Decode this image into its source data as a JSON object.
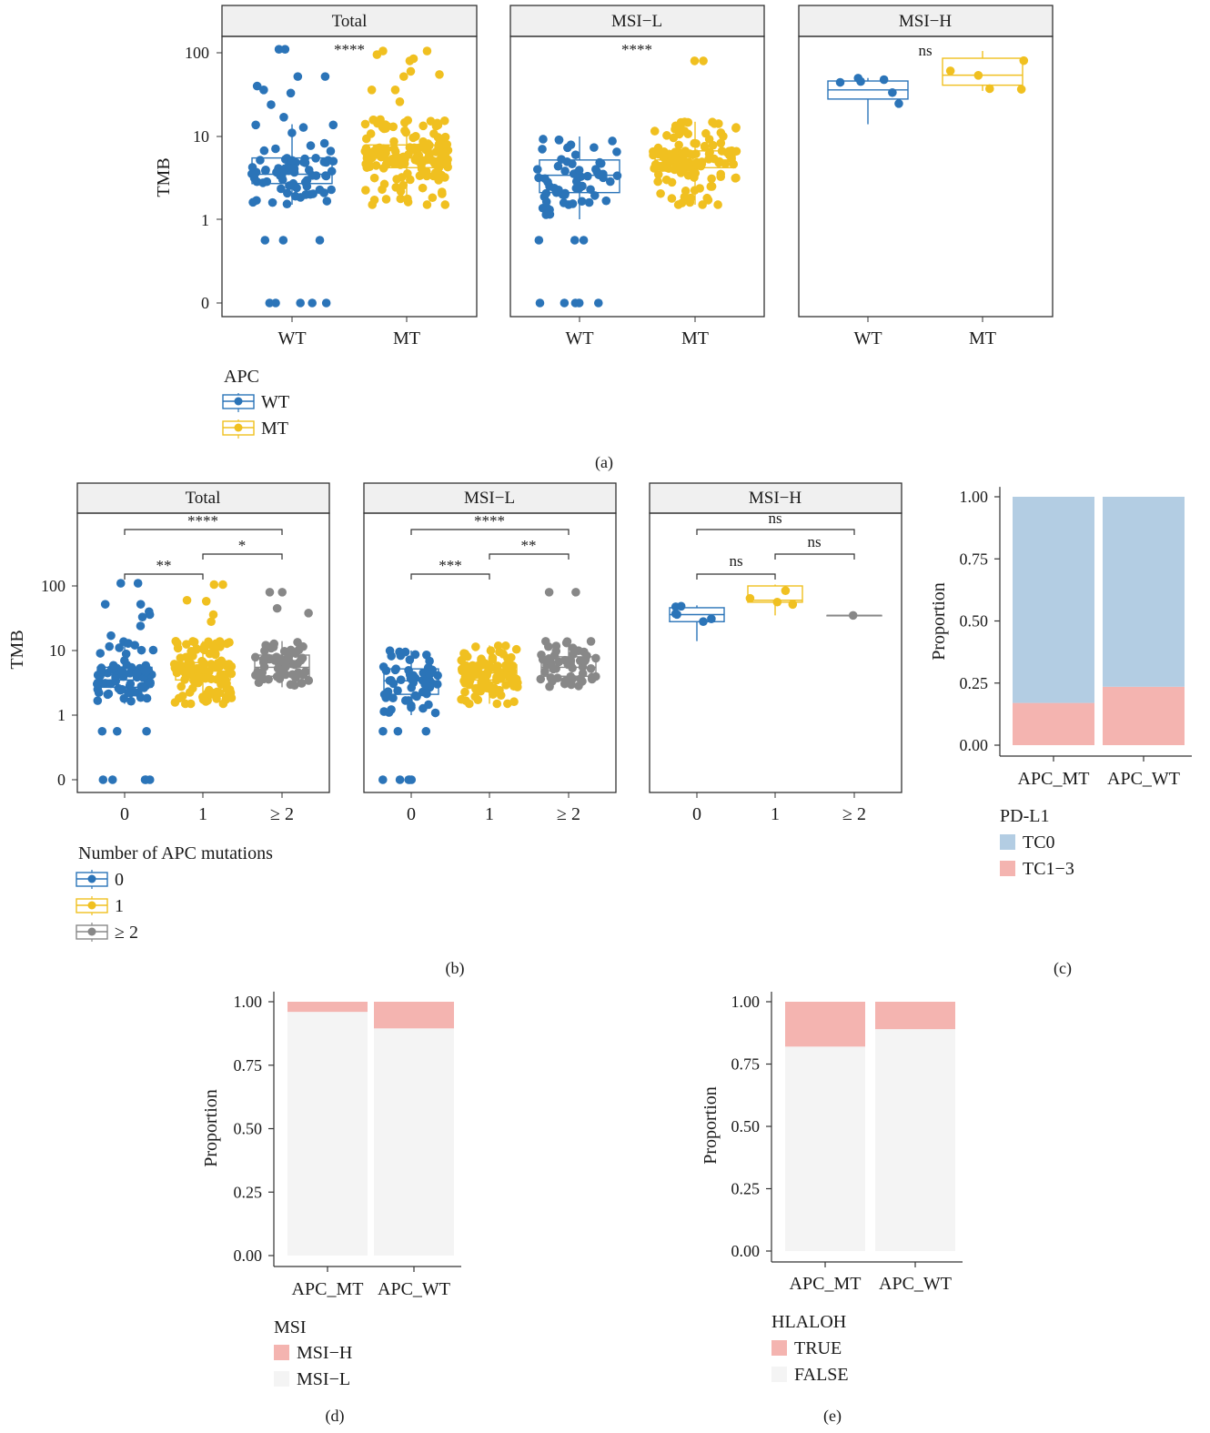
{
  "colors": {
    "blue": "#2b74b8",
    "yellow": "#f0c020",
    "gray": "#888888",
    "pdl1_tc0": "#b3cde3",
    "pink": "#f4b4b0",
    "light": "#f4f4f4",
    "strip_bg": "#f0f0f0"
  },
  "chart_data": [
    {
      "panel": "(a)",
      "type": "scatter",
      "subtype": "boxplot-jitter",
      "ylabel": "TMB",
      "yscale": "log-like",
      "yticks": [
        "0",
        "1",
        "10",
        "100"
      ],
      "facets": [
        "Total",
        "MSI−L",
        "MSI−H"
      ],
      "categories": [
        "WT",
        "MT"
      ],
      "significance": [
        "****",
        "****",
        "ns"
      ],
      "legend": {
        "title": "APC",
        "items": [
          "WT",
          "MT"
        ]
      },
      "series": [
        {
          "name": "WT",
          "boxes": [
            {
              "facet": "Total",
              "q1": 2.7,
              "median": 3.5,
              "q3": 5.5,
              "whisker_low": 1.5,
              "whisker_high": 14
            },
            {
              "facet": "MSI−L",
              "q1": 2.1,
              "median": 3.4,
              "q3": 5.2,
              "whisker_low": 1.0,
              "whisker_high": 10
            },
            {
              "facet": "MSI−H",
              "q1": 28,
              "median": 36,
              "q3": 46,
              "whisker_low": 14,
              "whisker_high": 50
            }
          ]
        },
        {
          "name": "MT",
          "boxes": [
            {
              "facet": "Total",
              "q1": 4.2,
              "median": 5.5,
              "q3": 7.9,
              "whisker_low": 1.5,
              "whisker_high": 16
            },
            {
              "facet": "MSI−L",
              "q1": 4.2,
              "median": 5.2,
              "q3": 6.7,
              "whisker_low": 1.5,
              "whisker_high": 15
            },
            {
              "facet": "MSI−H",
              "q1": 41,
              "median": 54,
              "q3": 86,
              "whisker_low": 35,
              "whisker_high": 105
            }
          ]
        }
      ]
    },
    {
      "panel": "(b)",
      "type": "scatter",
      "subtype": "boxplot-jitter",
      "ylabel": "TMB",
      "yscale": "log-like",
      "yticks": [
        "0",
        "1",
        "10",
        "100"
      ],
      "facets": [
        "Total",
        "MSI−L",
        "MSI−H"
      ],
      "categories": [
        "0",
        "1",
        "≥ 2"
      ],
      "comparisons": [
        {
          "facet": "Total",
          "pairs": [
            [
              "0",
              "1",
              "**"
            ],
            [
              "1",
              "≥ 2",
              "*"
            ],
            [
              "0",
              "≥ 2",
              "****"
            ]
          ]
        },
        {
          "facet": "MSI−L",
          "pairs": [
            [
              "0",
              "1",
              "***"
            ],
            [
              "1",
              "≥ 2",
              "**"
            ],
            [
              "0",
              "≥ 2",
              "****"
            ]
          ]
        },
        {
          "facet": "MSI−H",
          "pairs": [
            [
              "0",
              "1",
              "ns"
            ],
            [
              "1",
              "≥ 2",
              "ns"
            ],
            [
              "0",
              "≥ 2",
              "ns"
            ]
          ]
        }
      ],
      "legend": {
        "title": "Number of APC mutations",
        "items": [
          "0",
          "1",
          "≥ 2"
        ]
      },
      "series": [
        {
          "name": "0",
          "boxes": [
            {
              "facet": "Total",
              "q1": 2.7,
              "median": 3.5,
              "q3": 5.5,
              "whisker_low": 1.5,
              "whisker_high": 14
            },
            {
              "facet": "MSI−L",
              "q1": 2.1,
              "median": 3.4,
              "q3": 5.2,
              "whisker_low": 1.0,
              "whisker_high": 10
            },
            {
              "facet": "MSI−H",
              "q1": 28,
              "median": 36,
              "q3": 46,
              "whisker_low": 14,
              "whisker_high": 50
            }
          ]
        },
        {
          "name": "1",
          "boxes": [
            {
              "facet": "Total",
              "q1": 3.5,
              "median": 4.8,
              "q3": 6.5,
              "whisker_low": 1.5,
              "whisker_high": 14
            },
            {
              "facet": "MSI−L",
              "q1": 3.5,
              "median": 4.5,
              "q3": 6.0,
              "whisker_low": 1.5,
              "whisker_high": 12
            },
            {
              "facet": "MSI−H",
              "q1": 56,
              "median": 60,
              "q3": 100,
              "whisker_low": 35,
              "whisker_high": 105
            }
          ]
        },
        {
          "name": "≥ 2",
          "boxes": [
            {
              "facet": "Total",
              "q1": 4.0,
              "median": 5.5,
              "q3": 8.5,
              "whisker_low": 2.7,
              "whisker_high": 14
            },
            {
              "facet": "MSI−L",
              "q1": 4.0,
              "median": 5.5,
              "q3": 8.0,
              "whisker_low": 2.7,
              "whisker_high": 14
            },
            {
              "facet": "MSI−H",
              "q1": 35,
              "median": 35,
              "q3": 35,
              "whisker_low": 35,
              "whisker_high": 35
            }
          ]
        }
      ]
    },
    {
      "panel": "(c)",
      "type": "bar",
      "stacked": true,
      "categories": [
        "APC_MT",
        "APC_WT"
      ],
      "ylabel": "Proportion",
      "ylim": [
        0,
        1
      ],
      "yticks": [
        "0.00",
        "0.25",
        "0.50",
        "0.75",
        "1.00"
      ],
      "legend": {
        "title": "PD-L1",
        "items": [
          "TC0",
          "TC1−3"
        ]
      },
      "series": [
        {
          "name": "TC1−3",
          "values": [
            0.17,
            0.235
          ]
        },
        {
          "name": "TC0",
          "values": [
            0.83,
            0.765
          ]
        }
      ]
    },
    {
      "panel": "(d)",
      "type": "bar",
      "stacked": true,
      "categories": [
        "APC_MT",
        "APC_WT"
      ],
      "ylabel": "Proportion",
      "ylim": [
        0,
        1
      ],
      "yticks": [
        "0.00",
        "0.25",
        "0.50",
        "0.75",
        "1.00"
      ],
      "legend": {
        "title": "MSI",
        "items": [
          "MSI−H",
          "MSI−L"
        ]
      },
      "series": [
        {
          "name": "MSI−L",
          "values": [
            0.96,
            0.895
          ]
        },
        {
          "name": "MSI−H",
          "values": [
            0.04,
            0.105
          ]
        }
      ]
    },
    {
      "panel": "(e)",
      "type": "bar",
      "stacked": true,
      "categories": [
        "APC_MT",
        "APC_WT"
      ],
      "ylabel": "Proportion",
      "ylim": [
        0,
        1
      ],
      "yticks": [
        "0.00",
        "0.25",
        "0.50",
        "0.75",
        "1.00"
      ],
      "legend": {
        "title": "HLALOH",
        "items": [
          "TRUE",
          "FALSE"
        ]
      },
      "series": [
        {
          "name": "FALSE",
          "values": [
            0.82,
            0.89
          ]
        },
        {
          "name": "TRUE",
          "values": [
            0.18,
            0.11
          ]
        }
      ]
    }
  ]
}
